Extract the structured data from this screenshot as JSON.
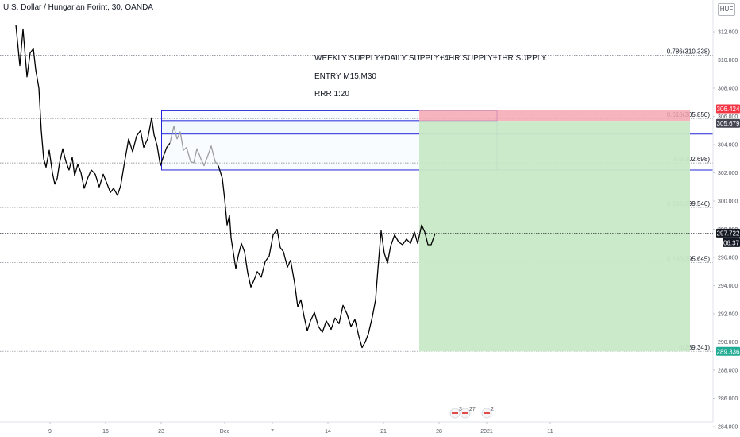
{
  "header": {
    "symbol_title": "U.S. Dollar / Hungarian Forint, 30, OANDA",
    "currency": "HUF"
  },
  "notes": {
    "line1": "WEEKLY SUPPLY+DAILY SUPPLY+4HR SUPPLY+1HR SUPPLY.",
    "line2": "ENTRY M15,M30",
    "line3": "RRR 1:20"
  },
  "colors": {
    "candle": "#000000",
    "projection": "#9e9e9e",
    "zone_border": "#2226d6",
    "stop_zone": "#f4a7b3",
    "target_zone": "#c8e9c6",
    "stop_tag": "#f23645",
    "entry_tag": "#434651",
    "price_tag": "#131722",
    "target_tag": "#22ab94",
    "fib_line": "#787b86"
  },
  "chart_data": {
    "type": "line",
    "title": "U.S. Dollar / Hungarian Forint, 30, OANDA",
    "xlabel": "",
    "ylabel": "",
    "ylim": [
      284,
      313
    ],
    "y_ticks": [
      284,
      286,
      288,
      290,
      292,
      294,
      296,
      298,
      300,
      302,
      304,
      306,
      308,
      310,
      312
    ],
    "y_tick_labels": [
      "284.000",
      "286.000",
      "288.000",
      "290.000",
      "292.000",
      "294.000",
      "296.000",
      "298.000",
      "300.000",
      "302.000",
      "304.000",
      "306.000",
      "308.000",
      "310.000",
      "312.000"
    ],
    "x_tick_labels": [
      "9",
      "16",
      "23",
      "Dec",
      "7",
      "14",
      "21",
      "28",
      "2021",
      "11"
    ],
    "x_tick_days": [
      0,
      7,
      14,
      22,
      28,
      35,
      42,
      49,
      55,
      63
    ],
    "x_range_days": [
      -4.6,
      81.2
    ],
    "grid": false,
    "series": [
      {
        "values_xy": [
          [
            -4.3,
            312.5
          ],
          [
            -3.8,
            309.6
          ],
          [
            -3.4,
            312.2
          ],
          [
            -2.9,
            308.8
          ],
          [
            -2.5,
            310.5
          ],
          [
            -2.1,
            310.8
          ],
          [
            -1.8,
            309.3
          ],
          [
            -1.4,
            308.0
          ],
          [
            -1.1,
            305.0
          ],
          [
            -0.8,
            303.0
          ],
          [
            -0.5,
            302.4
          ],
          [
            -0.1,
            303.6
          ],
          [
            0.3,
            302.0
          ],
          [
            0.6,
            301.2
          ],
          [
            0.9,
            301.6
          ],
          [
            1.2,
            302.7
          ],
          [
            1.6,
            303.7
          ],
          [
            2.0,
            302.8
          ],
          [
            2.4,
            302.2
          ],
          [
            2.8,
            303.1
          ],
          [
            3.1,
            301.8
          ],
          [
            3.5,
            302.6
          ],
          [
            3.9,
            302.0
          ],
          [
            4.3,
            300.9
          ],
          [
            4.8,
            301.7
          ],
          [
            5.2,
            302.2
          ],
          [
            5.7,
            301.9
          ],
          [
            6.2,
            301.0
          ],
          [
            6.7,
            301.9
          ],
          [
            7.2,
            301.2
          ],
          [
            7.6,
            300.6
          ],
          [
            8.0,
            300.9
          ],
          [
            8.5,
            300.4
          ],
          [
            8.9,
            301.1
          ],
          [
            9.4,
            302.8
          ],
          [
            9.9,
            304.4
          ],
          [
            10.4,
            303.5
          ],
          [
            10.9,
            304.6
          ],
          [
            11.4,
            305.0
          ],
          [
            11.8,
            303.8
          ],
          [
            12.3,
            304.4
          ],
          [
            12.8,
            305.9
          ],
          [
            13.1,
            304.7
          ],
          [
            13.5,
            303.9
          ],
          [
            13.9,
            302.5
          ],
          [
            14.3,
            303.2
          ],
          [
            14.7,
            303.8
          ],
          [
            15.1,
            304.1
          ]
        ]
      },
      {
        "values_xy": [
          [
            15.1,
            304.1
          ],
          [
            15.6,
            305.3
          ],
          [
            16.0,
            304.4
          ],
          [
            16.4,
            304.9
          ],
          [
            16.8,
            303.6
          ],
          [
            17.2,
            303.8
          ],
          [
            17.7,
            302.8
          ],
          [
            18.1,
            302.7
          ],
          [
            18.5,
            303.7
          ],
          [
            19.0,
            303.0
          ],
          [
            19.4,
            302.5
          ],
          [
            19.8,
            303.1
          ],
          [
            20.3,
            303.9
          ],
          [
            20.8,
            302.8
          ],
          [
            21.2,
            302.5
          ]
        ]
      },
      {
        "values_xy": [
          [
            21.2,
            302.5
          ],
          [
            21.7,
            301.6
          ],
          [
            22.0,
            300.1
          ],
          [
            22.3,
            298.3
          ],
          [
            22.6,
            299.0
          ],
          [
            22.8,
            297.4
          ],
          [
            23.1,
            296.3
          ],
          [
            23.4,
            295.2
          ],
          [
            23.7,
            296.1
          ],
          [
            24.1,
            297.0
          ],
          [
            24.5,
            296.4
          ],
          [
            24.9,
            294.9
          ],
          [
            25.3,
            293.9
          ],
          [
            25.7,
            294.4
          ],
          [
            26.1,
            295.0
          ],
          [
            26.6,
            294.6
          ],
          [
            27.1,
            295.7
          ],
          [
            27.6,
            296.1
          ],
          [
            28.1,
            297.6
          ],
          [
            28.6,
            298.0
          ],
          [
            29.0,
            296.7
          ],
          [
            29.4,
            296.4
          ],
          [
            29.9,
            295.3
          ],
          [
            30.3,
            295.8
          ],
          [
            30.8,
            294.2
          ],
          [
            31.2,
            292.5
          ],
          [
            31.6,
            293.0
          ],
          [
            32.0,
            291.8
          ],
          [
            32.4,
            290.8
          ],
          [
            32.8,
            291.5
          ],
          [
            33.3,
            292.1
          ],
          [
            33.8,
            291.1
          ],
          [
            34.3,
            290.7
          ],
          [
            34.8,
            291.5
          ],
          [
            35.4,
            290.9
          ],
          [
            35.9,
            291.7
          ],
          [
            36.4,
            291.3
          ],
          [
            36.9,
            292.6
          ],
          [
            37.4,
            292.0
          ],
          [
            37.9,
            291.1
          ],
          [
            38.4,
            291.6
          ],
          [
            38.9,
            290.4
          ],
          [
            39.3,
            289.6
          ],
          [
            39.7,
            290.0
          ],
          [
            40.1,
            290.6
          ],
          [
            40.6,
            291.8
          ],
          [
            41.0,
            293.0
          ],
          [
            41.3,
            295.2
          ],
          [
            41.7,
            297.9
          ],
          [
            42.1,
            296.3
          ],
          [
            42.5,
            295.6
          ],
          [
            42.9,
            296.8
          ],
          [
            43.4,
            297.6
          ],
          [
            43.9,
            297.1
          ],
          [
            44.4,
            296.9
          ],
          [
            44.9,
            297.3
          ],
          [
            45.4,
            297.0
          ],
          [
            45.9,
            297.8
          ],
          [
            46.3,
            297.0
          ],
          [
            46.8,
            298.3
          ],
          [
            47.2,
            297.8
          ],
          [
            47.6,
            296.9
          ],
          [
            48.0,
            296.9
          ],
          [
            48.5,
            297.7
          ]
        ]
      }
    ],
    "zones": [
      {
        "name": "supply-zone-outer",
        "x": [
          14.05,
          56.3
        ],
        "y": [
          302.2,
          306.4
        ]
      },
      {
        "name": "supply-zone-inner",
        "x": [
          14.05,
          56.3
        ],
        "y": [
          304.75,
          305.7
        ]
      }
    ],
    "position": {
      "x": [
        46.5,
        80.6
      ],
      "stop": 306.424,
      "entry": 305.679,
      "target": 289.336
    },
    "fib_levels": [
      {
        "label": "0.786(310.338)",
        "value": 310.338
      },
      {
        "label": "0.618(305.850)",
        "value": 305.85
      },
      {
        "label": "0.5(302.698)",
        "value": 302.698
      },
      {
        "label": "0.382(299.546)",
        "value": 299.546
      },
      {
        "label": "0.236(295.645)",
        "value": 295.645
      },
      {
        "label": "0(289.341)",
        "value": 289.341
      }
    ],
    "price_tags": [
      {
        "label": "306.424",
        "value": 306.424,
        "kind": "stop"
      },
      {
        "label": "305.679",
        "value": 305.679,
        "kind": "entry"
      },
      {
        "label": "297.722",
        "value": 297.722,
        "kind": "price"
      },
      {
        "label": "06:37",
        "value": 297.722,
        "kind": "countdown"
      },
      {
        "label": "289.336",
        "value": 289.336,
        "kind": "target"
      }
    ],
    "events": [
      {
        "label": "3",
        "day": 51.0
      },
      {
        "label": "27",
        "day": 52.3
      },
      {
        "label": "2",
        "day": 55.0
      }
    ]
  }
}
